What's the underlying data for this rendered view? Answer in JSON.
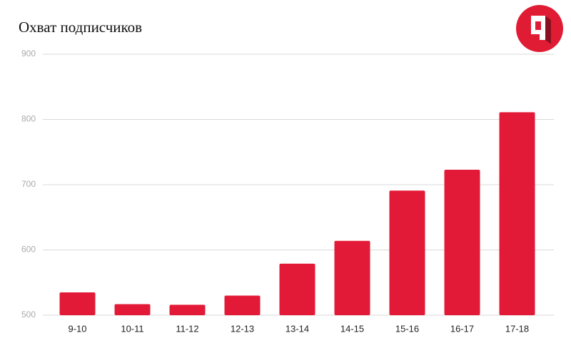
{
  "chart_data": {
    "type": "bar",
    "title": "Охват подписчиков",
    "categories": [
      "9-10",
      "10-11",
      "11-12",
      "12-13",
      "13-14",
      "14-15",
      "15-16",
      "16-17",
      "17-18"
    ],
    "values": [
      535,
      517,
      516,
      530,
      579,
      614,
      691,
      723,
      811
    ],
    "color": "#e31a37",
    "ylim": [
      500,
      900
    ],
    "yticks": [
      500,
      600,
      700,
      800,
      900
    ],
    "grid": true
  }
}
